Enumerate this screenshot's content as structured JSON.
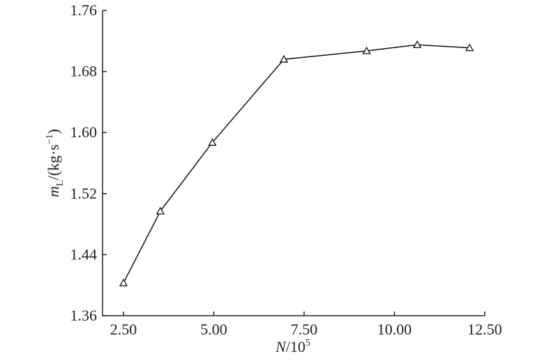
{
  "chart_data": {
    "type": "line",
    "xlabel": [
      "N",
      "/10",
      "5"
    ],
    "ylabel": [
      "m",
      "L",
      "/(kg·s",
      "−1",
      ")"
    ],
    "x": [
      2.5,
      3.52,
      4.96,
      6.94,
      9.23,
      10.63,
      12.08
    ],
    "series": [
      {
        "color": "#111111",
        "marker": "triangle",
        "values": [
          1.403,
          1.497,
          1.587,
          1.696,
          1.707,
          1.715,
          1.711
        ]
      }
    ],
    "xlim": [
      1.92,
      12.5
    ],
    "ylim": [
      1.36,
      1.76
    ],
    "xticks": [
      {
        "value": 2.5,
        "label": "2.50"
      },
      {
        "value": 5,
        "label": "5.00"
      },
      {
        "value": 7.5,
        "label": "7.50"
      },
      {
        "value": 10,
        "label": "10.00"
      },
      {
        "value": 12.5,
        "label": "12.50"
      }
    ],
    "yticks": [
      {
        "value": 1.36,
        "label": "1.36"
      },
      {
        "value": 1.44,
        "label": "1.44"
      },
      {
        "value": 1.52,
        "label": "1.52"
      },
      {
        "value": 1.6,
        "label": "1.60"
      },
      {
        "value": 1.68,
        "label": "1.68"
      },
      {
        "value": 1.76,
        "label": "1.76"
      }
    ],
    "grid": false
  }
}
